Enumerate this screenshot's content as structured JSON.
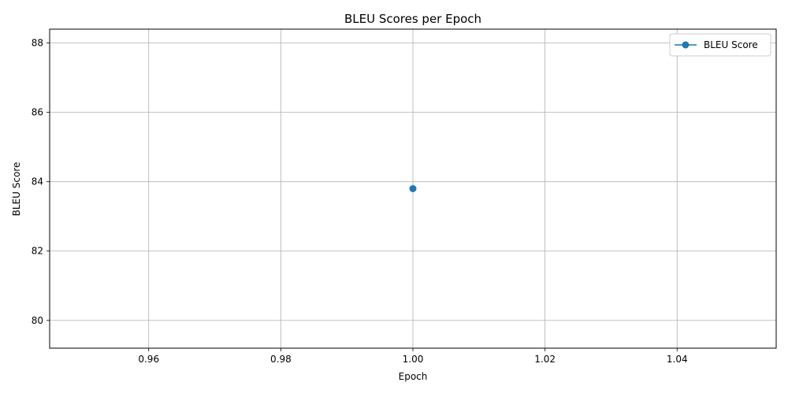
{
  "chart_data": {
    "type": "line",
    "title": "BLEU Scores per Epoch",
    "xlabel": "Epoch",
    "ylabel": "BLEU Score",
    "xlim": [
      0.945,
      1.055
    ],
    "ylim": [
      79.2,
      88.4
    ],
    "xticks": [
      0.96,
      0.98,
      1.0,
      1.02,
      1.04
    ],
    "xtick_labels": [
      "0.96",
      "0.98",
      "1.00",
      "1.02",
      "1.04"
    ],
    "yticks": [
      80,
      82,
      84,
      86,
      88
    ],
    "ytick_labels": [
      "80",
      "82",
      "84",
      "86",
      "88"
    ],
    "grid": true,
    "legend_position": "top-right",
    "series": [
      {
        "name": "BLEU Score",
        "color": "#1f77b4",
        "marker": "circle",
        "x": [
          1.0
        ],
        "y": [
          83.8
        ]
      }
    ]
  }
}
